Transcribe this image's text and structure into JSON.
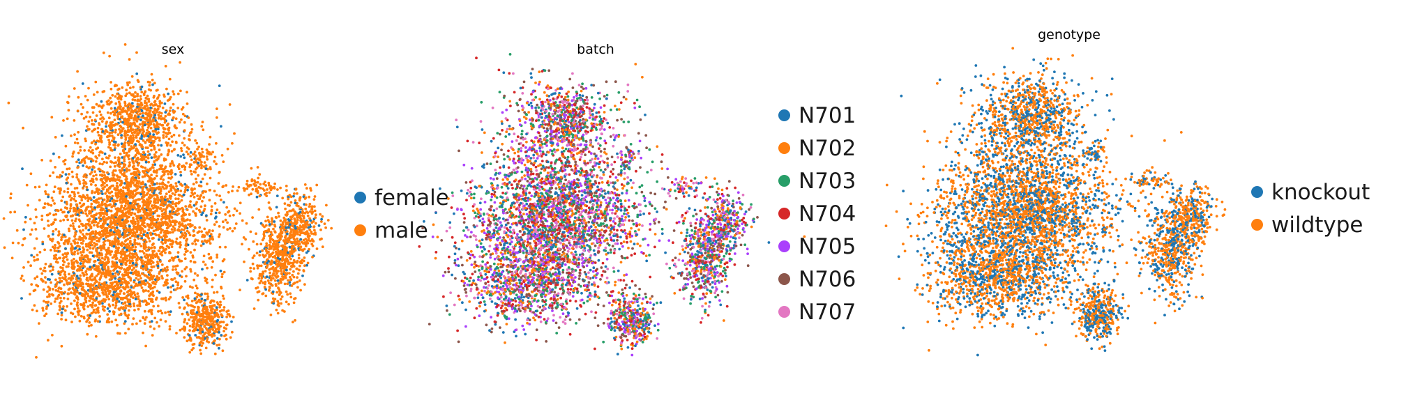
{
  "chart_data": [
    {
      "type": "scatter",
      "title": "sex",
      "xlabel": "",
      "ylabel": "",
      "grid": false,
      "legend_position": "right",
      "series": [
        {
          "name": "female",
          "color": "#1f77b4"
        },
        {
          "name": "male",
          "color": "#ff7f0e"
        }
      ]
    },
    {
      "type": "scatter",
      "title": "batch",
      "xlabel": "",
      "ylabel": "",
      "grid": false,
      "legend_position": "right",
      "series": [
        {
          "name": "N701",
          "color": "#1f77b4"
        },
        {
          "name": "N702",
          "color": "#ff7f0e"
        },
        {
          "name": "N703",
          "color": "#279e68"
        },
        {
          "name": "N704",
          "color": "#d62728"
        },
        {
          "name": "N705",
          "color": "#aa40fc"
        },
        {
          "name": "N706",
          "color": "#8c564b"
        },
        {
          "name": "N707",
          "color": "#e377c2"
        }
      ]
    },
    {
      "type": "scatter",
      "title": "genotype",
      "xlabel": "",
      "ylabel": "",
      "grid": false,
      "legend_position": "right",
      "series": [
        {
          "name": "knockout",
          "color": "#1f77b4"
        },
        {
          "name": "wildtype",
          "color": "#ff7f0e"
        }
      ]
    }
  ]
}
